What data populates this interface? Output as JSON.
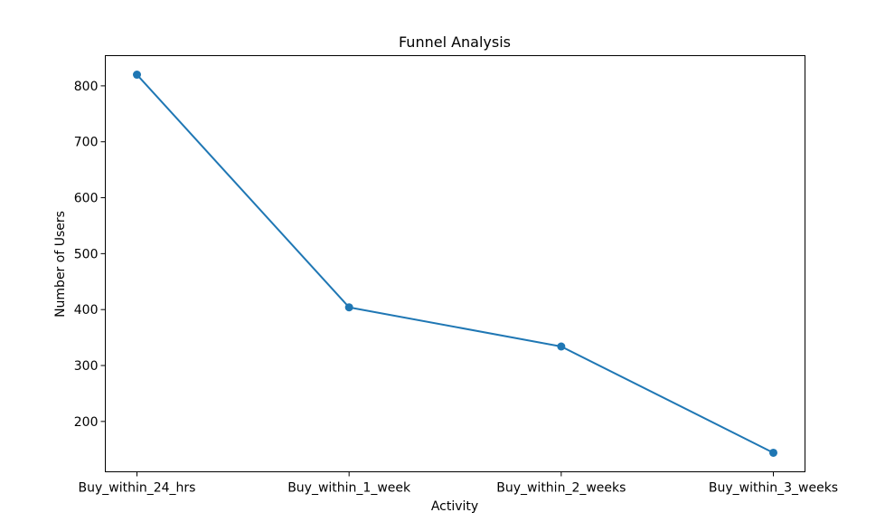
{
  "chart_data": {
    "type": "line",
    "title": "Funnel Analysis",
    "xlabel": "Activity",
    "ylabel": "Number of Users",
    "categories": [
      "Buy_within_24_hrs",
      "Buy_within_1_week",
      "Buy_within_2_weeks",
      "Buy_within_3_weeks"
    ],
    "series": [
      {
        "values": [
          820,
          404,
          334,
          144
        ],
        "color": "#1f77b4",
        "marker": "circle"
      }
    ],
    "yticks": [
      200,
      300,
      400,
      500,
      600,
      700,
      800
    ],
    "ylim": [
      110,
      854
    ],
    "grid": false,
    "legend": "none"
  }
}
